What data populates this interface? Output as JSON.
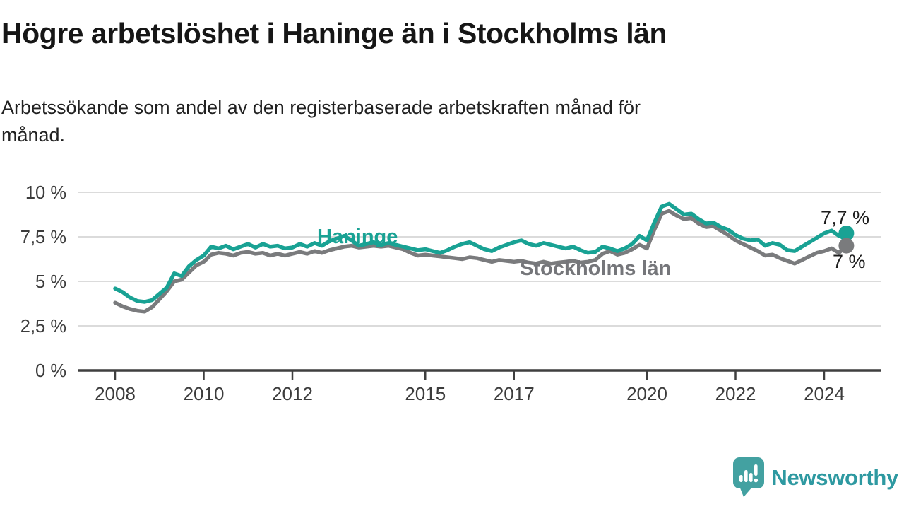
{
  "header": {
    "title": "Högre arbetslöshet i Haninge än i Stockholms län",
    "subtitle_lines": [
      "Arbetssökande som andel av den registerbaserade arbetskraften månad för",
      "månad."
    ]
  },
  "chart_data": {
    "type": "line",
    "title": "Högre arbetslöshet i Haninge än i Stockholms län",
    "subtitle": "Arbetssökande som andel av den registerbaserade arbetskraften månad för månad.",
    "unit": "%",
    "decimal_style": "comma",
    "x_start": 2008.0,
    "x_step_years": 0.16667,
    "x_end": 2024.5,
    "ylim": [
      0,
      10
    ],
    "grid": "horizontal",
    "legend_position": "inline-labels",
    "yticks": [
      {
        "value": 10,
        "label": "10 %"
      },
      {
        "value": 7.5,
        "label": "7,5 %"
      },
      {
        "value": 5,
        "label": "5 %"
      },
      {
        "value": 2.5,
        "label": "2,5 %"
      },
      {
        "value": 0,
        "label": "0 %"
      }
    ],
    "xticks": [
      {
        "value": 2008,
        "label": "2008"
      },
      {
        "value": 2010,
        "label": "2010"
      },
      {
        "value": 2012,
        "label": "2012"
      },
      {
        "value": 2015,
        "label": "2015"
      },
      {
        "value": 2017,
        "label": "2017"
      },
      {
        "value": 2020,
        "label": "2020"
      },
      {
        "value": 2022,
        "label": "2022"
      },
      {
        "value": 2024,
        "label": "2024"
      }
    ],
    "colors": {
      "haninge": "#19A294",
      "stockholm": "#7A7B7D",
      "grid": "#DBDBDB",
      "axis": "#3F3F3F",
      "tick_text": "#3C3C3C",
      "end_label_text": "#1D1D1D"
    },
    "series": [
      {
        "name": "Stockholms län",
        "color": "#7A7B7D",
        "end_label": "7 %",
        "end_value": 7.0,
        "values": [
          3.8,
          3.6,
          3.45,
          3.35,
          3.3,
          3.55,
          4.0,
          4.45,
          5.0,
          5.1,
          5.5,
          5.9,
          6.1,
          6.5,
          6.6,
          6.55,
          6.45,
          6.6,
          6.65,
          6.55,
          6.6,
          6.45,
          6.55,
          6.45,
          6.55,
          6.65,
          6.55,
          6.7,
          6.6,
          6.75,
          6.85,
          6.95,
          7.0,
          6.9,
          6.95,
          7.0,
          6.95,
          7.0,
          6.9,
          6.8,
          6.6,
          6.45,
          6.5,
          6.45,
          6.4,
          6.35,
          6.3,
          6.25,
          6.35,
          6.3,
          6.2,
          6.1,
          6.2,
          6.15,
          6.1,
          6.15,
          6.05,
          6.0,
          6.1,
          6.0,
          6.05,
          6.1,
          6.15,
          6.05,
          6.1,
          6.2,
          6.55,
          6.7,
          6.5,
          6.6,
          6.8,
          7.05,
          6.85,
          7.9,
          8.8,
          8.95,
          8.7,
          8.5,
          8.55,
          8.25,
          8.05,
          8.1,
          7.85,
          7.6,
          7.3,
          7.1,
          6.9,
          6.7,
          6.45,
          6.5,
          6.3,
          6.15,
          6.0,
          6.2,
          6.4,
          6.6,
          6.7,
          6.85,
          6.6,
          7.0
        ]
      },
      {
        "name": "Haninge",
        "color": "#19A294",
        "end_label": "7,7 %",
        "end_value": 7.7,
        "values": [
          4.6,
          4.4,
          4.1,
          3.9,
          3.85,
          3.95,
          4.3,
          4.65,
          5.45,
          5.3,
          5.85,
          6.2,
          6.45,
          6.95,
          6.85,
          7.0,
          6.8,
          6.95,
          7.1,
          6.9,
          7.1,
          6.95,
          7.0,
          6.85,
          6.9,
          7.1,
          6.95,
          7.15,
          7.0,
          7.25,
          7.4,
          7.55,
          7.3,
          7.0,
          7.1,
          7.2,
          7.05,
          7.15,
          7.05,
          6.95,
          6.85,
          6.75,
          6.8,
          6.7,
          6.6,
          6.75,
          6.95,
          7.1,
          7.2,
          7.0,
          6.8,
          6.7,
          6.9,
          7.05,
          7.2,
          7.3,
          7.1,
          7.0,
          7.15,
          7.05,
          6.95,
          6.85,
          6.95,
          6.75,
          6.6,
          6.65,
          6.95,
          6.85,
          6.7,
          6.85,
          7.1,
          7.55,
          7.3,
          8.3,
          9.2,
          9.35,
          9.05,
          8.75,
          8.8,
          8.5,
          8.25,
          8.3,
          8.05,
          7.9,
          7.6,
          7.4,
          7.3,
          7.35,
          7.0,
          7.15,
          7.05,
          6.75,
          6.7,
          6.95,
          7.2,
          7.45,
          7.7,
          7.85,
          7.55,
          7.7
        ]
      }
    ],
    "series_inline_labels": [
      {
        "text": "Haninge",
        "color": "#19A294"
      },
      {
        "text": "Stockholms län",
        "color": "#75767A"
      }
    ]
  },
  "footer": {
    "brand": "Newsworthy",
    "brand_color": "#2E99A1",
    "icon_color": "#43A1A1",
    "icon": "speech-bubble-bar-chart"
  }
}
